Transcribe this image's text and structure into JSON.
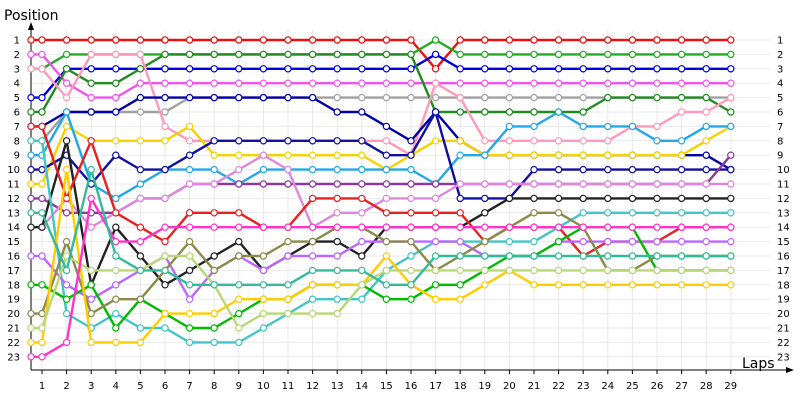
{
  "chart_data": {
    "type": "line",
    "xlabel": "Laps",
    "ylabel": "Position",
    "x": [
      1,
      2,
      3,
      4,
      5,
      6,
      7,
      8,
      9,
      10,
      11,
      12,
      13,
      14,
      15,
      16,
      17,
      18,
      19,
      20,
      21,
      22,
      23,
      24,
      25,
      26,
      27,
      28,
      29
    ],
    "y_ticks": [
      1,
      2,
      3,
      4,
      5,
      6,
      7,
      8,
      9,
      10,
      11,
      12,
      13,
      14,
      15,
      16,
      17,
      18,
      19,
      20,
      21,
      22,
      23
    ],
    "xlim": [
      0,
      29.5
    ],
    "ylim": [
      0.5,
      23.5
    ],
    "y_inverted": true,
    "grid": true,
    "series": [
      {
        "color": "#e81010",
        "values": [
          1,
          1,
          1,
          1,
          1,
          1,
          1,
          1,
          1,
          1,
          1,
          1,
          1,
          1,
          1,
          1,
          3,
          1,
          1,
          1,
          1,
          1,
          1,
          1,
          1,
          1,
          1,
          1,
          1
        ]
      },
      {
        "color": "#22aa22",
        "values": [
          3,
          2,
          2,
          2,
          2,
          2,
          2,
          2,
          2,
          2,
          2,
          2,
          2,
          2,
          2,
          2,
          1,
          2,
          2,
          2,
          2,
          2,
          2,
          2,
          2,
          2,
          2,
          2,
          2
        ]
      },
      {
        "color": "#0000dd",
        "values": [
          5,
          3,
          3,
          3,
          3,
          3,
          3,
          3,
          3,
          3,
          3,
          3,
          3,
          3,
          3,
          3,
          2,
          3,
          3,
          3,
          3,
          3,
          3,
          3,
          3,
          3,
          3,
          3,
          3
        ]
      },
      {
        "color": "#ee55ee",
        "values": [
          2,
          4,
          5,
          5,
          4,
          4,
          4,
          4,
          4,
          4,
          4,
          4,
          4,
          4,
          4,
          4,
          4,
          4,
          4,
          4,
          4,
          4,
          4,
          4,
          4,
          4,
          4,
          4,
          4
        ]
      },
      {
        "color": "#a0a0a0",
        "values": [
          8,
          6,
          6,
          6,
          6,
          6,
          5,
          5,
          5,
          5,
          5,
          5,
          5,
          5,
          5,
          5,
          5,
          5,
          5,
          5,
          5,
          5,
          5,
          5,
          5,
          5,
          5,
          5,
          5
        ]
      },
      {
        "color": "#228b22",
        "values": [
          6,
          3,
          4,
          4,
          3,
          2,
          2,
          2,
          2,
          2,
          2,
          2,
          2,
          2,
          2,
          2,
          6,
          6,
          6,
          6,
          6,
          6,
          6,
          5,
          5,
          5,
          5,
          5,
          6
        ]
      },
      {
        "color": "#ff99bb",
        "values": [
          3,
          5,
          2,
          2,
          2,
          7,
          8,
          8,
          8,
          8,
          8,
          8,
          8,
          8,
          8,
          9,
          4,
          5,
          8,
          8,
          8,
          8,
          8,
          8,
          7,
          7,
          6,
          6,
          5
        ]
      },
      {
        "color": "#0000aa",
        "values": [
          7,
          6,
          6,
          6,
          5,
          5,
          5,
          5,
          5,
          5,
          5,
          5,
          6,
          6,
          7,
          8,
          6,
          8,
          9,
          9,
          9,
          9,
          9,
          9,
          9,
          9,
          9,
          9,
          10
        ]
      },
      {
        "color": "#f5d200",
        "values": [
          11,
          7,
          8,
          8,
          8,
          8,
          7,
          9,
          9,
          9,
          9,
          9,
          9,
          9,
          10,
          9,
          8,
          8,
          9,
          9,
          9,
          9,
          9,
          9,
          9,
          9,
          9,
          8,
          7
        ]
      },
      {
        "color": "#22a8e8",
        "values": [
          9,
          6,
          11,
          12,
          11,
          10,
          10,
          10,
          11,
          10,
          10,
          10,
          10,
          10,
          10,
          10,
          11,
          9,
          9,
          7,
          7,
          6,
          7,
          7,
          7,
          8,
          8,
          7,
          7
        ]
      },
      {
        "color": "#1010a0",
        "values": [
          10,
          9,
          11,
          9,
          10,
          10,
          9,
          8,
          8,
          8,
          8,
          8,
          8,
          8,
          9,
          9,
          6,
          12,
          12,
          12,
          10,
          10,
          10,
          10,
          10,
          10,
          10,
          10,
          10
        ]
      },
      {
        "color": "#8a3a9a",
        "values": [
          12,
          13,
          13,
          13,
          12,
          12,
          11,
          11,
          11,
          11,
          11,
          11,
          11,
          11,
          11,
          11,
          11,
          11,
          11,
          11,
          11,
          11,
          11,
          11,
          11,
          11,
          11,
          11,
          9
        ]
      },
      {
        "color": "#dd88dd",
        "values": [
          14,
          12,
          14,
          13,
          12,
          12,
          11,
          11,
          10,
          9,
          10,
          14,
          13,
          13,
          12,
          12,
          12,
          11,
          11,
          11,
          11,
          11,
          11,
          11,
          11,
          11,
          11,
          11,
          11
        ]
      },
      {
        "color": "#222222",
        "values": [
          14,
          8,
          18,
          14,
          16,
          18,
          17,
          16,
          15,
          17,
          16,
          15,
          15,
          16,
          14,
          14,
          14,
          14,
          13,
          12,
          12,
          12,
          12,
          12,
          12,
          12,
          12,
          12,
          12
        ]
      },
      {
        "color": "#e82020",
        "values": [
          7,
          12,
          8,
          13,
          14,
          15,
          13,
          13,
          13,
          14,
          14,
          12,
          12,
          12,
          13,
          13,
          13,
          13,
          15,
          14,
          14,
          14,
          16,
          15,
          15,
          15,
          14,
          14,
          14
        ]
      },
      {
        "color": "#44c4c4",
        "values": [
          8,
          20,
          21,
          20,
          21,
          21,
          22,
          22,
          22,
          21,
          20,
          19,
          19,
          19,
          17,
          16,
          15,
          15,
          15,
          15,
          15,
          14,
          13,
          13,
          13,
          13,
          13,
          13,
          13
        ]
      },
      {
        "color": "#bb66ff",
        "values": [
          16,
          18,
          19,
          18,
          17,
          16,
          19,
          17,
          16,
          17,
          16,
          16,
          16,
          15,
          15,
          15,
          15,
          15,
          16,
          16,
          16,
          15,
          15,
          15,
          15,
          15,
          15,
          15,
          15
        ]
      },
      {
        "color": "#00bb00",
        "values": [
          18,
          19,
          18,
          21,
          19,
          20,
          21,
          21,
          20,
          19,
          19,
          18,
          18,
          18,
          19,
          19,
          18,
          18,
          17,
          16,
          16,
          15,
          14,
          14,
          14,
          17,
          17,
          17,
          17
        ]
      },
      {
        "color": "#8a8a4a",
        "values": [
          20,
          15,
          20,
          19,
          19,
          17,
          15,
          17,
          16,
          16,
          15,
          15,
          14,
          14,
          15,
          15,
          17,
          16,
          15,
          14,
          13,
          13,
          14,
          17,
          17,
          16,
          16,
          16,
          16
        ]
      },
      {
        "color": "#ffcc00",
        "values": [
          22,
          10,
          22,
          22,
          22,
          20,
          20,
          20,
          19,
          19,
          19,
          18,
          18,
          18,
          16,
          18,
          19,
          19,
          18,
          17,
          18,
          18,
          18,
          18,
          18,
          18,
          18,
          18,
          18
        ]
      },
      {
        "color": "#b8d878",
        "values": [
          21,
          16,
          17,
          17,
          17,
          16,
          16,
          18,
          21,
          20,
          20,
          20,
          20,
          18,
          17,
          17,
          17,
          17,
          17,
          17,
          17,
          17,
          17,
          17,
          17,
          17,
          17,
          17,
          17
        ]
      },
      {
        "color": "#ff33cc",
        "values": [
          23,
          22,
          12,
          15,
          15,
          14,
          14,
          14,
          14,
          14,
          14,
          14,
          14,
          14,
          14,
          14,
          14,
          14,
          14,
          14,
          14,
          14,
          14,
          14,
          14,
          14,
          14,
          14,
          14
        ]
      },
      {
        "color": "#33bb99",
        "values": [
          13,
          17,
          10,
          16,
          17,
          17,
          18,
          18,
          18,
          18,
          18,
          17,
          17,
          17,
          18,
          18,
          16,
          16,
          16,
          16,
          16,
          16,
          16,
          16,
          16,
          16,
          16,
          16,
          16
        ]
      }
    ]
  }
}
